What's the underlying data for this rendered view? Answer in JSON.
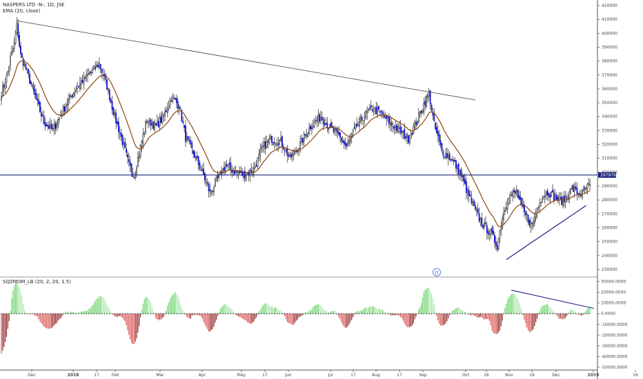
{
  "header": {
    "symbol_line": "NASPERS LTD -N-, 1D, JSE",
    "ema_line": "EMA (20, close)",
    "sqz_line": "SQZMOM_LB (20, 2, 20, 1.5)",
    "event_marker": "D",
    "price_tag": "297976"
  },
  "colors": {
    "bull_candle": "#ffffff",
    "bear_candle": "#1414d2",
    "candle_outline": "#000000",
    "ema": "#8b4513",
    "trendline": "#555555",
    "support_line": "#1a237e",
    "triangle_line": "#1a237e",
    "mom_up_strong": "#66d266",
    "mom_up_weak": "#a6e5a6",
    "mom_down_strong": "#d94a4a",
    "mom_down_weak": "#8b1a1a",
    "squeeze_dot": "#222222"
  },
  "chart_data": [
    {
      "type": "candlestick",
      "title": "NASPERS LTD -N-, 1D, JSE",
      "ylim": [
        225000,
        422000
      ],
      "y_ticks": [
        "420000",
        "410000",
        "400000",
        "390000",
        "380000",
        "370000",
        "360000",
        "350000",
        "340000",
        "330000",
        "320000",
        "310000",
        "300000",
        "290000",
        "280000",
        "270000",
        "260000",
        "250000",
        "240000",
        "230000"
      ],
      "x_ticks": [
        "Dec",
        "2018",
        "17",
        "Feb",
        "Mar",
        "Apr",
        "May",
        "17",
        "Jun",
        "Jul",
        "17",
        "Aug",
        "17",
        "Sep",
        "Oct",
        "16",
        "Nov",
        "16",
        "Dec",
        "2019",
        "16"
      ],
      "price_levels": {
        "horizontal_line": 297976,
        "last_close": 297976
      },
      "anchors": [
        [
          0,
          357000
        ],
        [
          4,
          368000
        ],
        [
          7,
          382000
        ],
        [
          10,
          392000
        ],
        [
          12,
          406000
        ],
        [
          15,
          384000
        ],
        [
          20,
          372000
        ],
        [
          27,
          352000
        ],
        [
          33,
          336000
        ],
        [
          40,
          330000
        ],
        [
          48,
          345000
        ],
        [
          55,
          356000
        ],
        [
          62,
          365000
        ],
        [
          70,
          372000
        ],
        [
          76,
          378000
        ],
        [
          82,
          362000
        ],
        [
          88,
          340000
        ],
        [
          94,
          322000
        ],
        [
          99,
          305000
        ],
        [
          103,
          298000
        ],
        [
          108,
          318000
        ],
        [
          113,
          338000
        ],
        [
          120,
          333000
        ],
        [
          126,
          340000
        ],
        [
          132,
          354000
        ],
        [
          138,
          348000
        ],
        [
          143,
          325000
        ],
        [
          150,
          312000
        ],
        [
          156,
          300000
        ],
        [
          162,
          285000
        ],
        [
          168,
          295000
        ],
        [
          174,
          305000
        ],
        [
          180,
          301000
        ],
        [
          188,
          298000
        ],
        [
          196,
          302000
        ],
        [
          203,
          318000
        ],
        [
          210,
          324000
        ],
        [
          217,
          322000
        ],
        [
          224,
          310000
        ],
        [
          232,
          320000
        ],
        [
          240,
          333000
        ],
        [
          248,
          340000
        ],
        [
          255,
          332000
        ],
        [
          262,
          326000
        ],
        [
          268,
          318000
        ],
        [
          274,
          330000
        ],
        [
          281,
          340000
        ],
        [
          288,
          346000
        ],
        [
          295,
          342000
        ],
        [
          302,
          335000
        ],
        [
          309,
          330000
        ],
        [
          316,
          324000
        ],
        [
          322,
          336000
        ],
        [
          328,
          349000
        ],
        [
          332,
          357000
        ],
        [
          336,
          334000
        ],
        [
          342,
          315000
        ],
        [
          349,
          310000
        ],
        [
          356,
          300000
        ],
        [
          362,
          285000
        ],
        [
          368,
          272000
        ],
        [
          374,
          262000
        ],
        [
          380,
          256000
        ],
        [
          385,
          247000
        ],
        [
          389,
          268000
        ],
        [
          394,
          283000
        ],
        [
          400,
          285000
        ],
        [
          406,
          270000
        ],
        [
          412,
          262000
        ],
        [
          418,
          280000
        ],
        [
          424,
          286000
        ],
        [
          430,
          282000
        ],
        [
          436,
          279000
        ],
        [
          443,
          288000
        ],
        [
          450,
          284000
        ],
        [
          457,
          291000
        ]
      ],
      "support_line": {
        "y": 297976
      },
      "downtrend_line": [
        [
          12,
          409000
        ],
        [
          368,
          352000
        ]
      ],
      "ascending_line": [
        [
          392,
          237000
        ],
        [
          454,
          276000
        ]
      ],
      "ema_period": 20
    },
    {
      "type": "bar",
      "title": "SQZMOM_LB (20, 2, 20, 1.5)",
      "ylim": [
        -52000,
        33000
      ],
      "y_ticks": [
        "30000.0000",
        "20000.0000",
        "10000.0000",
        "0.0000",
        "-10000.0000",
        "-20000.0000",
        "-30000.0000",
        "-40000.0000",
        "-50000.0000"
      ],
      "divergence_line": [
        [
          396,
          22000
        ],
        [
          460,
          5000
        ]
      ]
    }
  ]
}
